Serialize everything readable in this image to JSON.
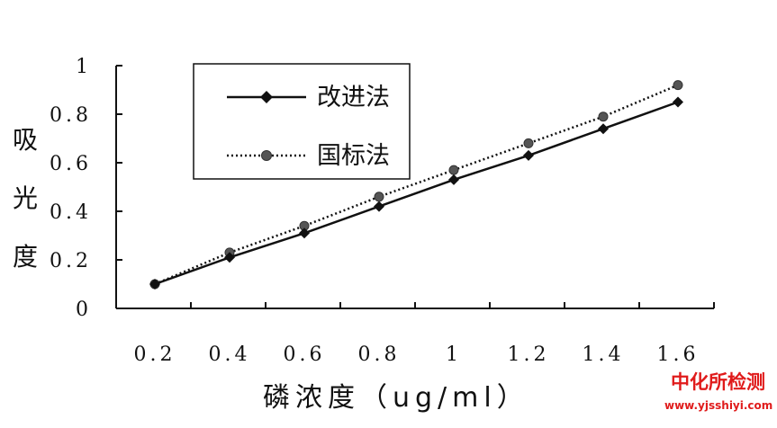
{
  "chart_data": {
    "type": "line",
    "title": "",
    "xlabel": "磷浓度（ug/ml）",
    "ylabel": "吸光度",
    "categories": [
      "0.2",
      "0.4",
      "0.6",
      "0.8",
      "1",
      "1.2",
      "1.4",
      "1.6"
    ],
    "x": [
      0.2,
      0.4,
      0.6,
      0.8,
      1.0,
      1.2,
      1.4,
      1.6
    ],
    "xlim": [
      0.0,
      1.6
    ],
    "ylim": [
      0,
      1
    ],
    "yticks": [
      "0",
      "0.2",
      "0.4",
      "0.6",
      "0.8",
      "1"
    ],
    "legend_position": "top-left",
    "grid": false,
    "series": [
      {
        "name": "改进法",
        "style": "solid",
        "marker": "diamond",
        "color": "#111111",
        "values": [
          0.1,
          0.21,
          0.31,
          0.42,
          0.53,
          0.63,
          0.74,
          0.85
        ]
      },
      {
        "name": "国标法",
        "style": "dotted",
        "marker": "circle",
        "color": "#111111",
        "values": [
          0.1,
          0.23,
          0.34,
          0.46,
          0.57,
          0.68,
          0.79,
          0.92
        ]
      }
    ]
  },
  "watermark": {
    "line1": "中化所检测",
    "line2": "www.yjsshiyi.com"
  }
}
